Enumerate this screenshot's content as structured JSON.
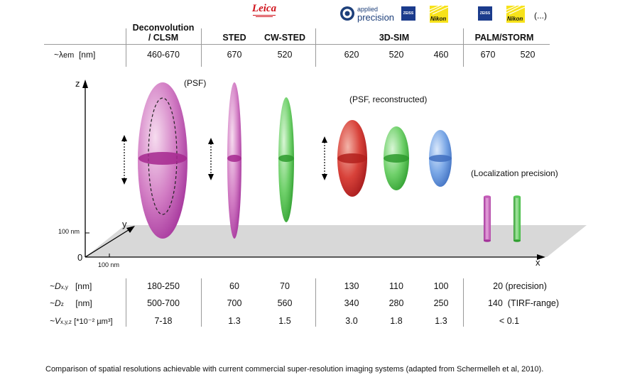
{
  "logos": {
    "leica": "Leica",
    "applied_precision_line1": "applied",
    "applied_precision_line2": "precision",
    "zeiss": "ZEISS",
    "nikon": "Nikon",
    "ellipsis": "(...)"
  },
  "columns": {
    "deconv_line1": "Deconvolution",
    "deconv_line2": "/ CLSM",
    "sted": "STED",
    "cwsted": "CW-STED",
    "sim": "3D-SIM",
    "palm": "PALM/STORM"
  },
  "rows": {
    "lambda": {
      "label_sym": "~λ",
      "label_sub": "em",
      "label_unit": "[nm]",
      "values": [
        "460-670",
        "670",
        "520",
        "620",
        "520",
        "460",
        "670",
        "520"
      ]
    },
    "dxy": {
      "label_pre": "~D",
      "label_sub": "x,y",
      "label_unit": "[nm]",
      "values": [
        "180-250",
        "60",
        "70",
        "130",
        "110",
        "100",
        "20 (precision)"
      ]
    },
    "dz": {
      "label_pre": "~D",
      "label_sub": "z",
      "label_unit": "[nm]",
      "values": [
        "500-700",
        "700",
        "560",
        "340",
        "280",
        "250",
        "140  (TIRF-range)"
      ]
    },
    "vxyz": {
      "label_pre": "~V",
      "label_sub": "x,y,z",
      "label_unit": "[*10⁻² µm³]",
      "values": [
        "7-18",
        "1.3",
        "1.5",
        "3.0",
        "1.8",
        "1.3",
        "< 0.1"
      ]
    }
  },
  "diagram": {
    "axis_z": "z",
    "axis_y": "y",
    "axis_x": "x",
    "origin": "0",
    "scale_v": "100 nm",
    "scale_h": "100 nm",
    "psf_label": "(PSF)",
    "psf_recon_label": "(PSF, reconstructed)",
    "loc_label": "(Localization precision)"
  },
  "colors": {
    "magenta": "#c04ab0",
    "green": "#3cb83c",
    "red": "#c62a22",
    "blue": "#4f86d2",
    "floor": "#d6d6d6"
  },
  "caption": "Comparison of spatial resolutions achievable with current commercial super-resolution imaging systems (adapted from Schermelleh et al, 2010)."
}
